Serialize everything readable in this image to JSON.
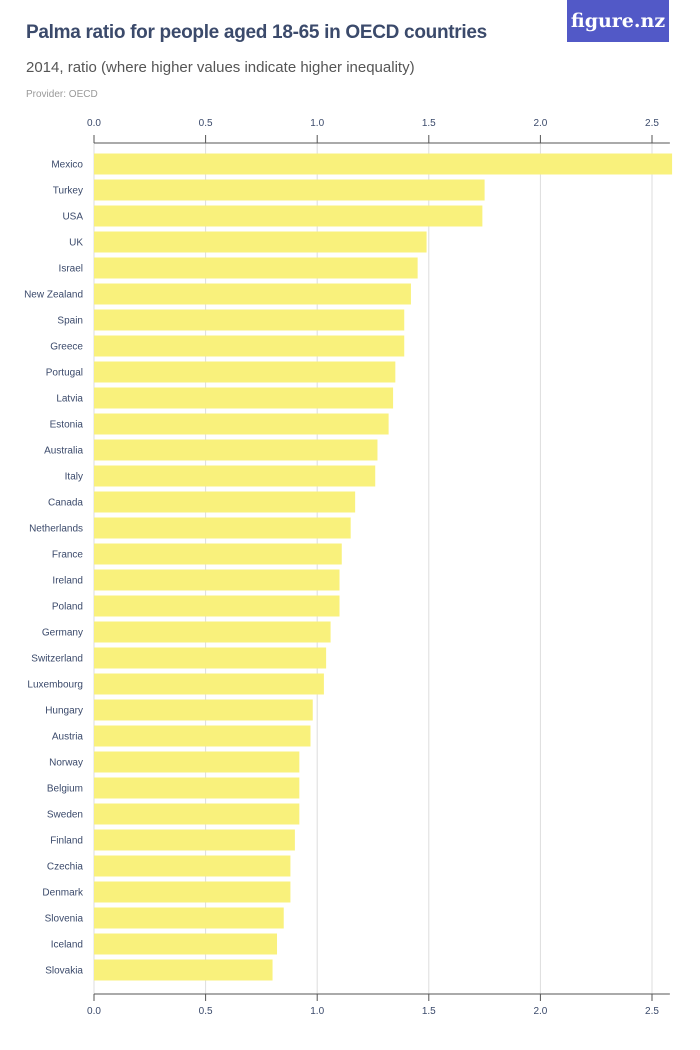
{
  "header": {
    "title": "Palma ratio for people aged 18-65 in OECD countries",
    "subtitle": "2014, ratio (where higher values indicate higher inequality)",
    "provider": "Provider: OECD",
    "logo_text": "figure.nz"
  },
  "colors": {
    "bar": "#f9f17c",
    "grid": "#dddddd",
    "axis": "#555555",
    "logo_bg": "#5259c7"
  },
  "chart_data": {
    "type": "bar",
    "orientation": "horizontal",
    "title": "Palma ratio for people aged 18-65 in OECD countries",
    "subtitle": "2014, ratio (where higher values indicate higher inequality)",
    "xlim": [
      0,
      2.58
    ],
    "ticks": [
      "0.0",
      "0.5",
      "1.0",
      "1.5",
      "2.0",
      "2.5"
    ],
    "tick_values": [
      0,
      0.5,
      1.0,
      1.5,
      2.0,
      2.5
    ],
    "grid": true,
    "categories": [
      "Mexico",
      "Turkey",
      "USA",
      "UK",
      "Israel",
      "New Zealand",
      "Spain",
      "Greece",
      "Portugal",
      "Latvia",
      "Estonia",
      "Australia",
      "Italy",
      "Canada",
      "Netherlands",
      "France",
      "Ireland",
      "Poland",
      "Germany",
      "Switzerland",
      "Luxembourg",
      "Hungary",
      "Austria",
      "Norway",
      "Belgium",
      "Sweden",
      "Finland",
      "Czechia",
      "Denmark",
      "Slovenia",
      "Iceland",
      "Slovakia"
    ],
    "values": [
      2.59,
      1.75,
      1.74,
      1.49,
      1.45,
      1.42,
      1.39,
      1.39,
      1.35,
      1.34,
      1.32,
      1.27,
      1.26,
      1.17,
      1.15,
      1.11,
      1.1,
      1.1,
      1.06,
      1.04,
      1.03,
      0.98,
      0.97,
      0.92,
      0.92,
      0.92,
      0.9,
      0.88,
      0.88,
      0.85,
      0.82,
      0.8
    ]
  }
}
